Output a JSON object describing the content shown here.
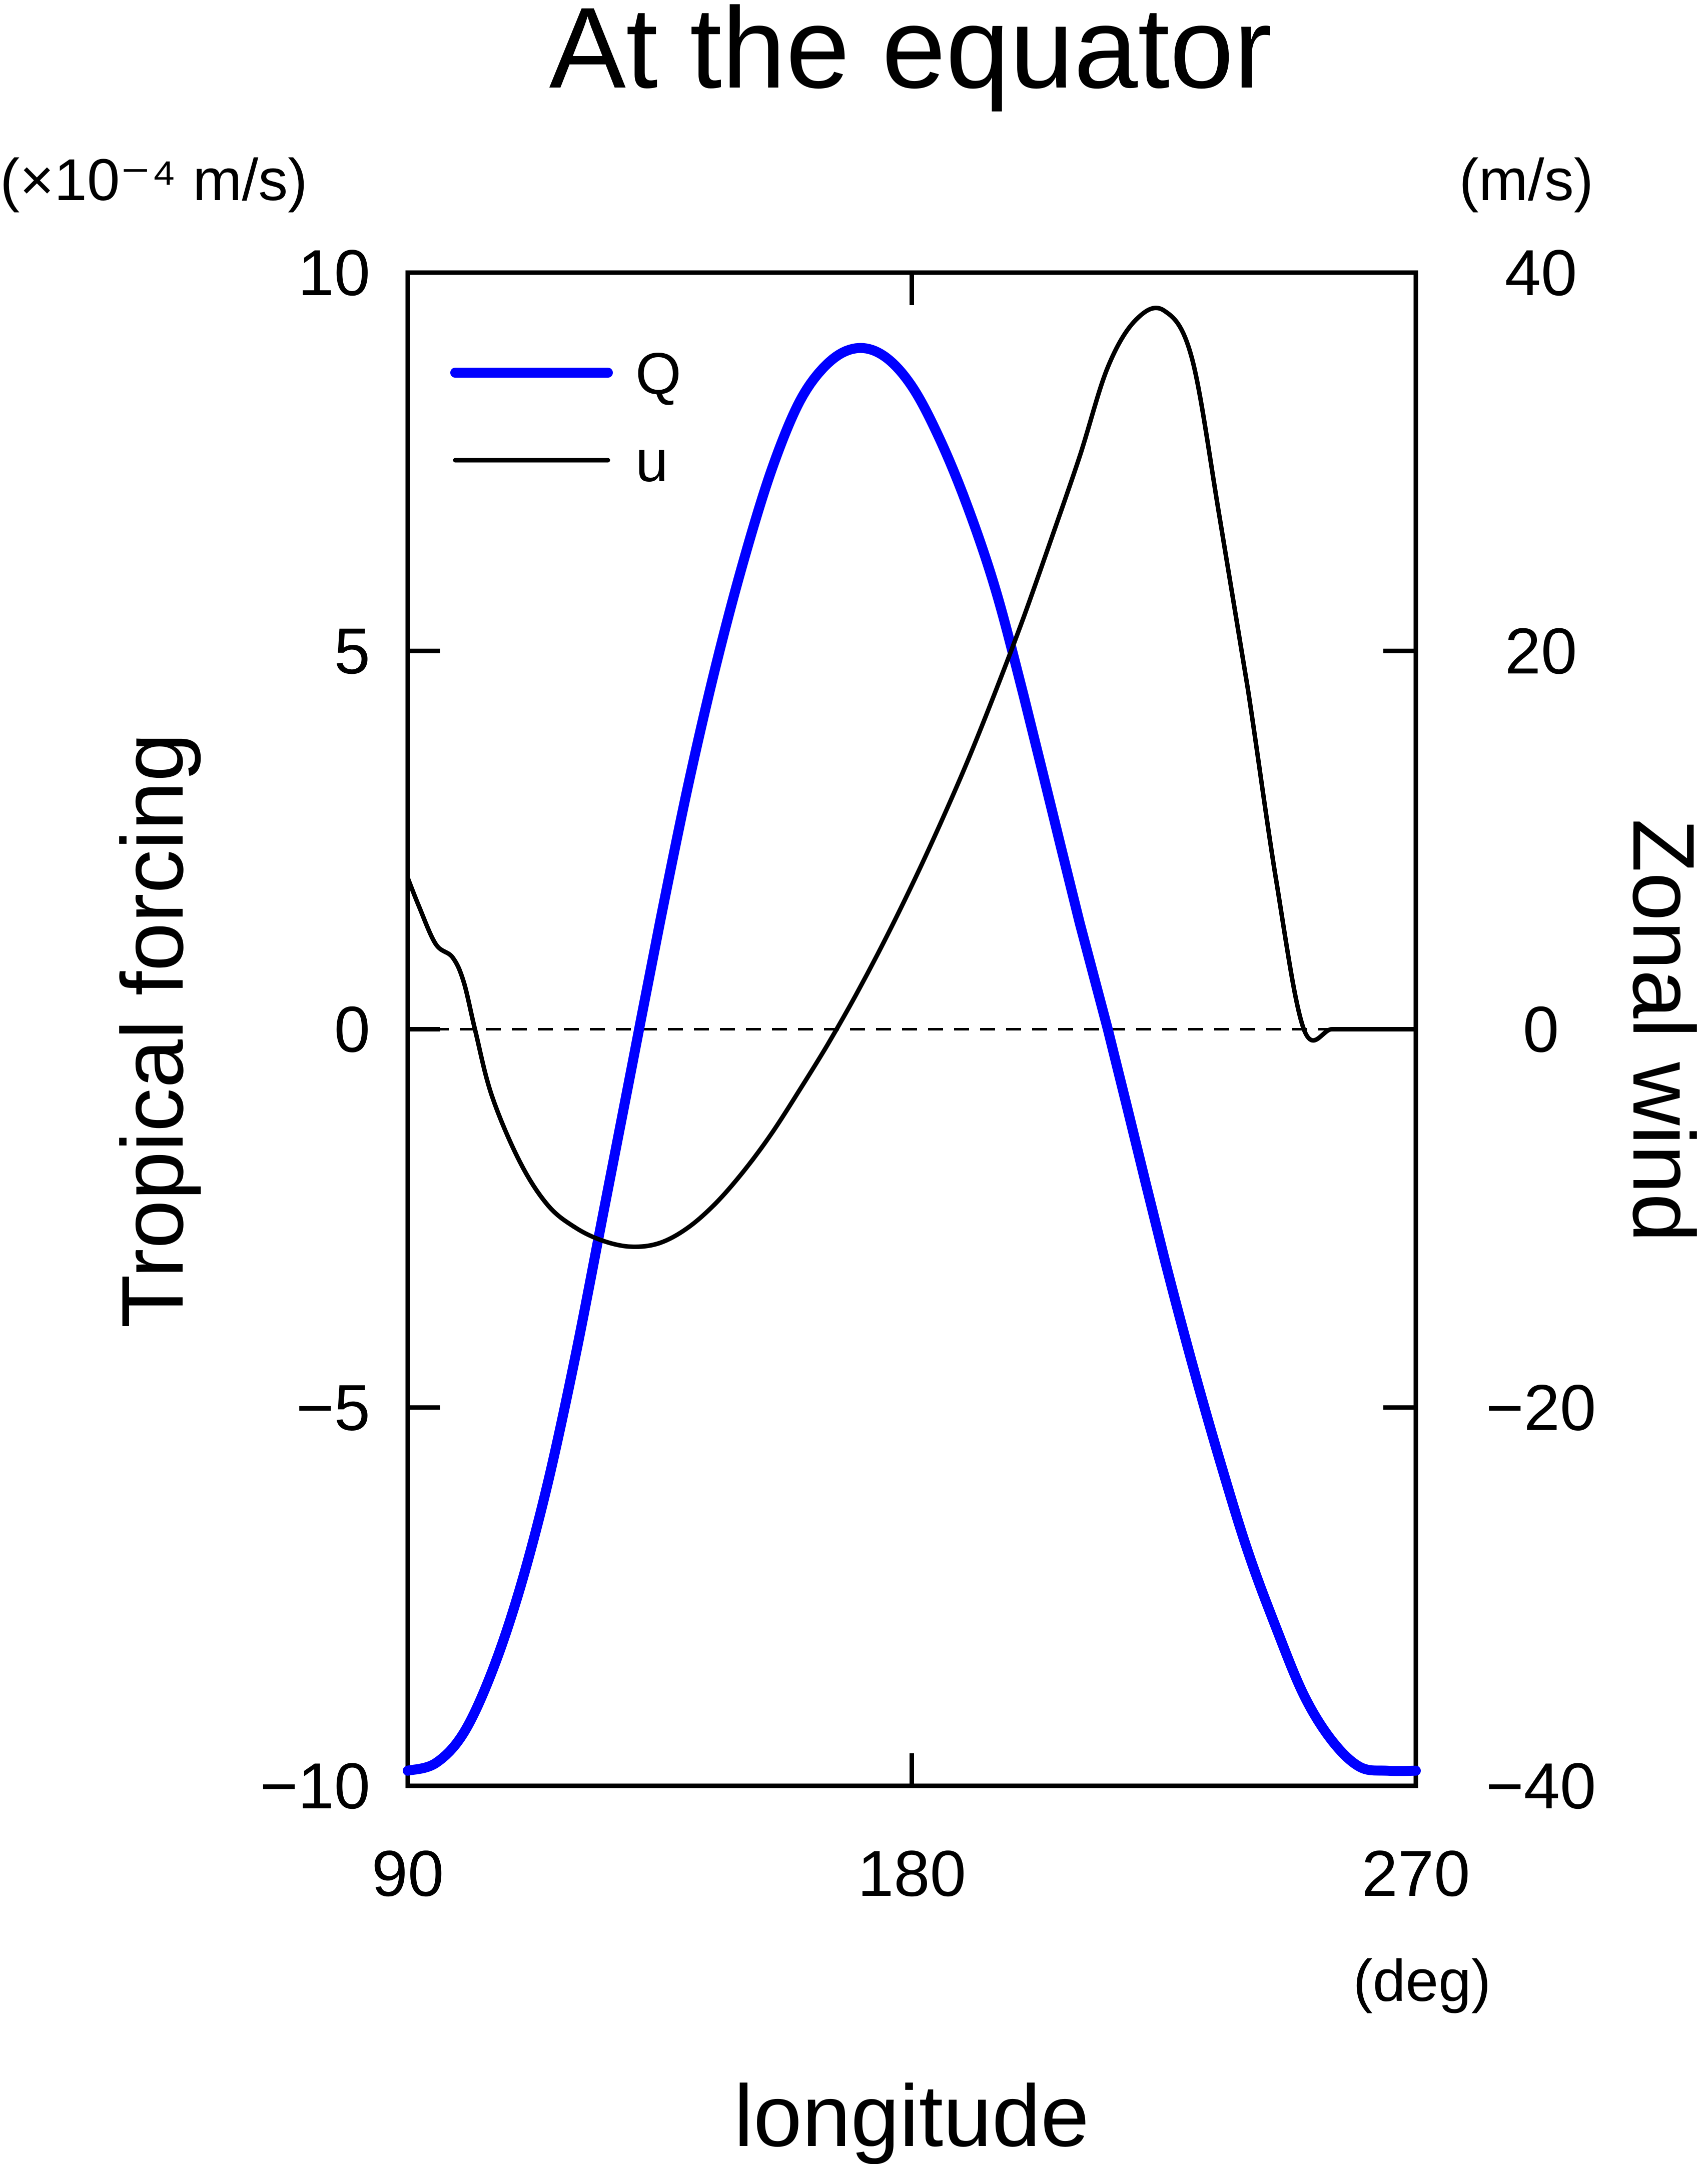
{
  "chart_data": {
    "type": "line",
    "title": "At the equator",
    "xlabel": "longitude",
    "xunit": "(deg)",
    "xlim": [
      90,
      270
    ],
    "xticks": [
      "90",
      "180",
      "270"
    ],
    "y_left": {
      "label": "Tropical forcing",
      "unit": "(×10⁻⁴ m/s)",
      "lim": [
        -10,
        10
      ],
      "ticks": [
        "10",
        "5",
        "0",
        "−5",
        "−10"
      ]
    },
    "y_right": {
      "label": "Zonal wind",
      "unit": "(m/s)",
      "lim": [
        -40,
        40
      ],
      "ticks": [
        "40",
        "20",
        "0",
        "−20",
        "−40"
      ]
    },
    "zero_line": "dashed",
    "grid": false,
    "legend_position": "top-left",
    "series": [
      {
        "name": "Q",
        "axis": "left",
        "color": "#0000ff",
        "x": [
          90,
          95,
          100,
          105,
          110,
          115,
          120,
          125,
          130,
          135,
          140,
          145,
          150,
          155,
          160,
          165,
          170,
          175,
          180,
          185,
          190,
          195,
          200,
          205,
          210,
          215,
          220,
          225,
          230,
          235,
          240,
          245,
          250,
          255,
          260,
          265,
          270
        ],
        "values": [
          -9.8,
          -9.7,
          -9.3,
          -8.5,
          -7.4,
          -6.0,
          -4.3,
          -2.4,
          -0.5,
          1.4,
          3.2,
          4.8,
          6.2,
          7.4,
          8.3,
          8.8,
          9.0,
          8.9,
          8.5,
          7.8,
          6.9,
          5.8,
          4.4,
          2.9,
          1.4,
          0.0,
          -1.5,
          -3.0,
          -4.4,
          -5.7,
          -6.9,
          -7.9,
          -8.8,
          -9.4,
          -9.75,
          -9.8,
          -9.8
        ]
      },
      {
        "name": "u",
        "axis": "right",
        "color": "#000000",
        "x": [
          90,
          92,
          95,
          98,
          100,
          102,
          105,
          110,
          115,
          120,
          125,
          130,
          135,
          140,
          145,
          150,
          155,
          160,
          165,
          170,
          175,
          180,
          185,
          190,
          195,
          200,
          205,
          210,
          215,
          220,
          225,
          230,
          235,
          240,
          245,
          250,
          255,
          260,
          265,
          270
        ],
        "values": [
          8,
          6.5,
          4.5,
          3.8,
          2.5,
          0,
          -3.5,
          -7,
          -9.3,
          -10.5,
          -11.2,
          -11.5,
          -11.3,
          -10.5,
          -9.2,
          -7.5,
          -5.5,
          -3.2,
          -0.8,
          1.8,
          4.6,
          7.6,
          10.8,
          14.2,
          17.9,
          21.8,
          26,
          30.3,
          35,
          37.5,
          38,
          35.5,
          27,
          18,
          8,
          0,
          0,
          0,
          0,
          0
        ]
      }
    ]
  }
}
